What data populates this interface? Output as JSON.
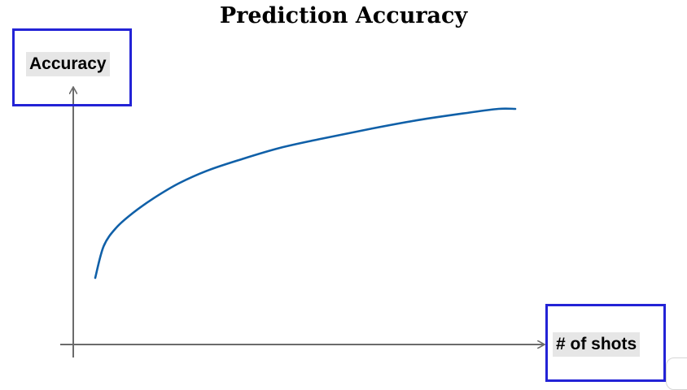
{
  "chart_data": {
    "type": "line",
    "title": "Prediction Accuracy",
    "xlabel": "# of shots",
    "ylabel": "Accuracy",
    "grid": false,
    "legend": "none",
    "series": [
      {
        "color": "#1060a8",
        "points": [
          [
            0.0,
            0.0
          ],
          [
            0.02,
            0.17
          ],
          [
            0.05,
            0.27
          ],
          [
            0.09,
            0.35
          ],
          [
            0.14,
            0.43
          ],
          [
            0.2,
            0.51
          ],
          [
            0.27,
            0.58
          ],
          [
            0.35,
            0.64
          ],
          [
            0.44,
            0.7
          ],
          [
            0.54,
            0.75
          ],
          [
            0.65,
            0.8
          ],
          [
            0.77,
            0.85
          ],
          [
            0.89,
            0.89
          ],
          [
            0.96,
            0.91
          ],
          [
            1.0,
            0.91
          ]
        ]
      }
    ]
  },
  "colors": {
    "highlight_box": "#2323d6",
    "axis": "#6b6b6b",
    "label_background": "#e6e6e6",
    "curve": "#1060a8"
  },
  "icons": {
    "x_axis_end": "arrow-right-icon",
    "y_axis_end": "arrow-up-icon"
  }
}
